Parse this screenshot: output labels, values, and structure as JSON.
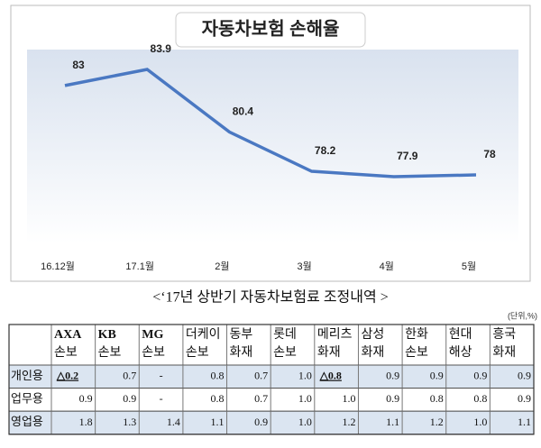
{
  "chart_data": {
    "type": "line",
    "title": "자동차보험 손해율",
    "categories": [
      "16.12월",
      "17.1월",
      "2월",
      "3월",
      "4월",
      "5월"
    ],
    "values": [
      83,
      83.9,
      80.4,
      78.2,
      77.9,
      78
    ],
    "color": "#4a78c2"
  },
  "subtitle": "<‘17년 상반기 자동차보험료 조정내역 >",
  "unit": "(단위,%)",
  "table": {
    "header": [
      [
        "AXA",
        "손보"
      ],
      [
        "KB",
        "손보"
      ],
      [
        "MG",
        "손보"
      ],
      [
        "더케이",
        "손보"
      ],
      [
        "동부",
        "화재"
      ],
      [
        "롯데",
        "손보"
      ],
      [
        "메리츠",
        "화재"
      ],
      [
        "삼성",
        "화재"
      ],
      [
        "한화",
        "손보"
      ],
      [
        "현대",
        "해상"
      ],
      [
        "흥국",
        "화재"
      ]
    ],
    "rows": [
      {
        "label": "개인용",
        "cells": [
          "△0.2",
          "0.7",
          "-",
          "0.8",
          "0.7",
          "1.0",
          "△0.8",
          "0.9",
          "0.9",
          "0.9",
          "0.9"
        ]
      },
      {
        "label": "업무용",
        "cells": [
          "0.9",
          "0.9",
          "-",
          "0.8",
          "0.7",
          "1.0",
          "1.0",
          "0.9",
          "0.8",
          "0.8",
          "0.9"
        ]
      },
      {
        "label": "영업용",
        "cells": [
          "1.8",
          "1.3",
          "1.4",
          "1.1",
          "0.9",
          "1.0",
          "1.2",
          "1.1",
          "1.2",
          "1.0",
          "1.1"
        ]
      }
    ]
  }
}
